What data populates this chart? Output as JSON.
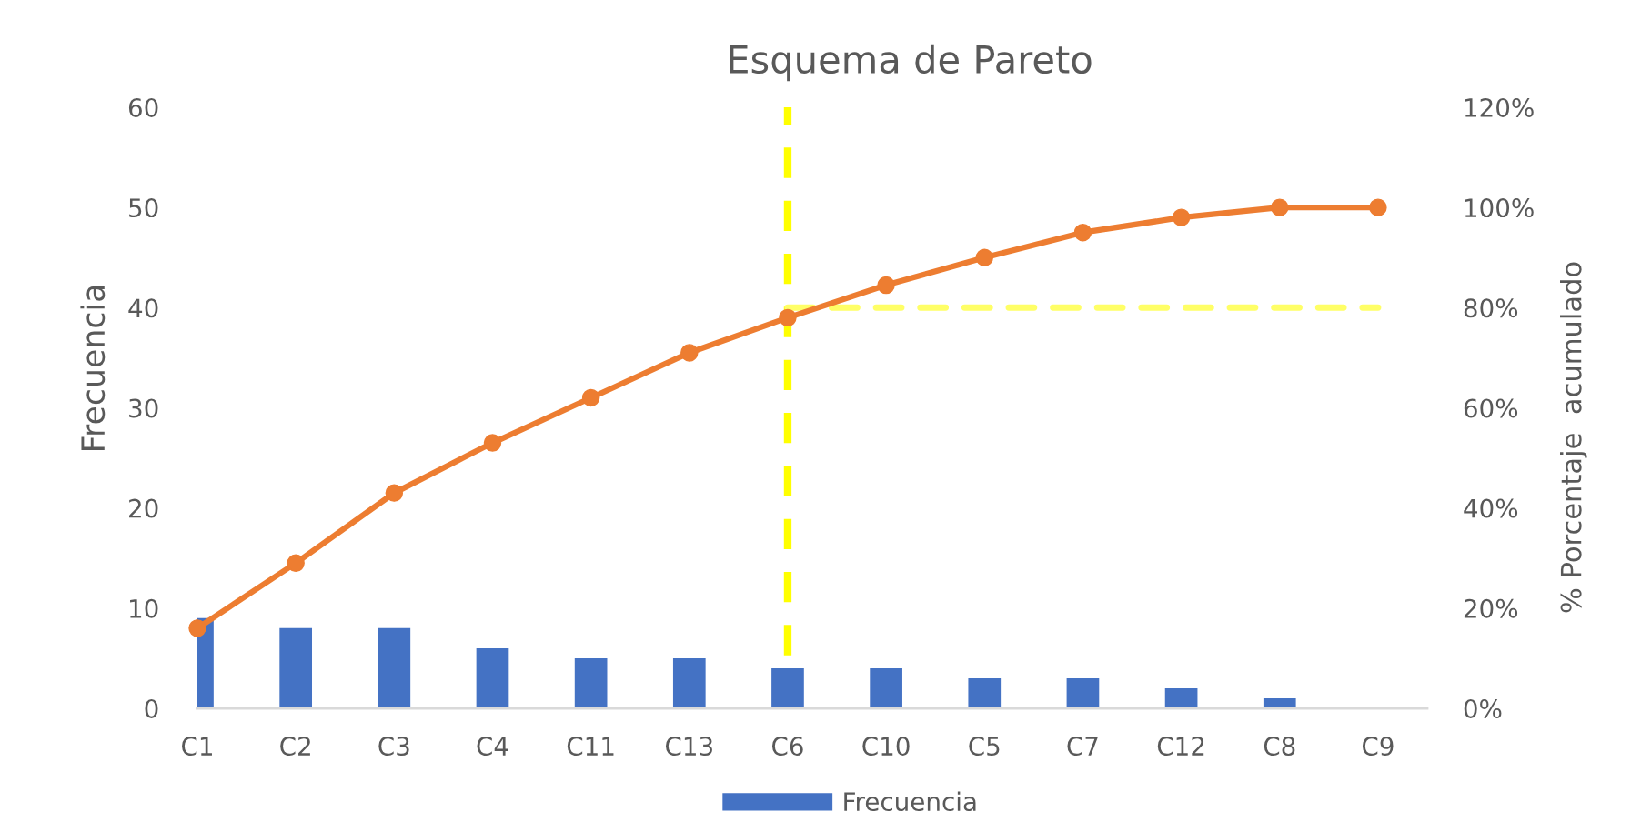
{
  "chart_data": {
    "type": "bar",
    "title": "Esquema de Pareto",
    "ylabel": "Frecuencia",
    "y2label": "% Porcentaje  acumulado",
    "categories": [
      "C1",
      "C2",
      "C3",
      "C4",
      "C11",
      "C13",
      "C6",
      "C10",
      "C5",
      "C7",
      "C12",
      "C8",
      "C9"
    ],
    "series": [
      {
        "name": "Frecuencia",
        "color": "#4472c4",
        "values": [
          9,
          8,
          8,
          6,
          5,
          5,
          4,
          4,
          3,
          3,
          2,
          1,
          0
        ]
      },
      {
        "type": "line",
        "axis": "y2",
        "x": [
          "C6",
          "C9"
        ],
        "values": [
          80,
          80
        ],
        "color": "#ffff66",
        "line_style": "dashed",
        "marker": "none"
      },
      {
        "type": "line",
        "axis": "y2",
        "color": "#ed7d31",
        "marker": "circle",
        "line_style": "solid",
        "values": [
          16,
          29,
          43,
          53,
          62,
          71,
          78,
          84.5,
          90,
          95,
          98,
          100,
          100
        ]
      }
    ],
    "ref_lines": [
      {
        "axis": "x",
        "value": "C6",
        "color": "#ffff00",
        "line_style": "dashed"
      }
    ],
    "ylim": [
      0,
      60
    ],
    "yticks": [
      0,
      10,
      20,
      30,
      40,
      50,
      60
    ],
    "y2lim": [
      0,
      120
    ],
    "y2ticks": [
      {
        "value": 0,
        "label": "0%"
      },
      {
        "value": 20,
        "label": "20%"
      },
      {
        "value": 40,
        "label": "40%"
      },
      {
        "value": 60,
        "label": "60%"
      },
      {
        "value": 80,
        "label": "80%"
      },
      {
        "value": 100,
        "label": "100%"
      },
      {
        "value": 120,
        "label": "120%"
      }
    ],
    "legend": "bottom"
  }
}
